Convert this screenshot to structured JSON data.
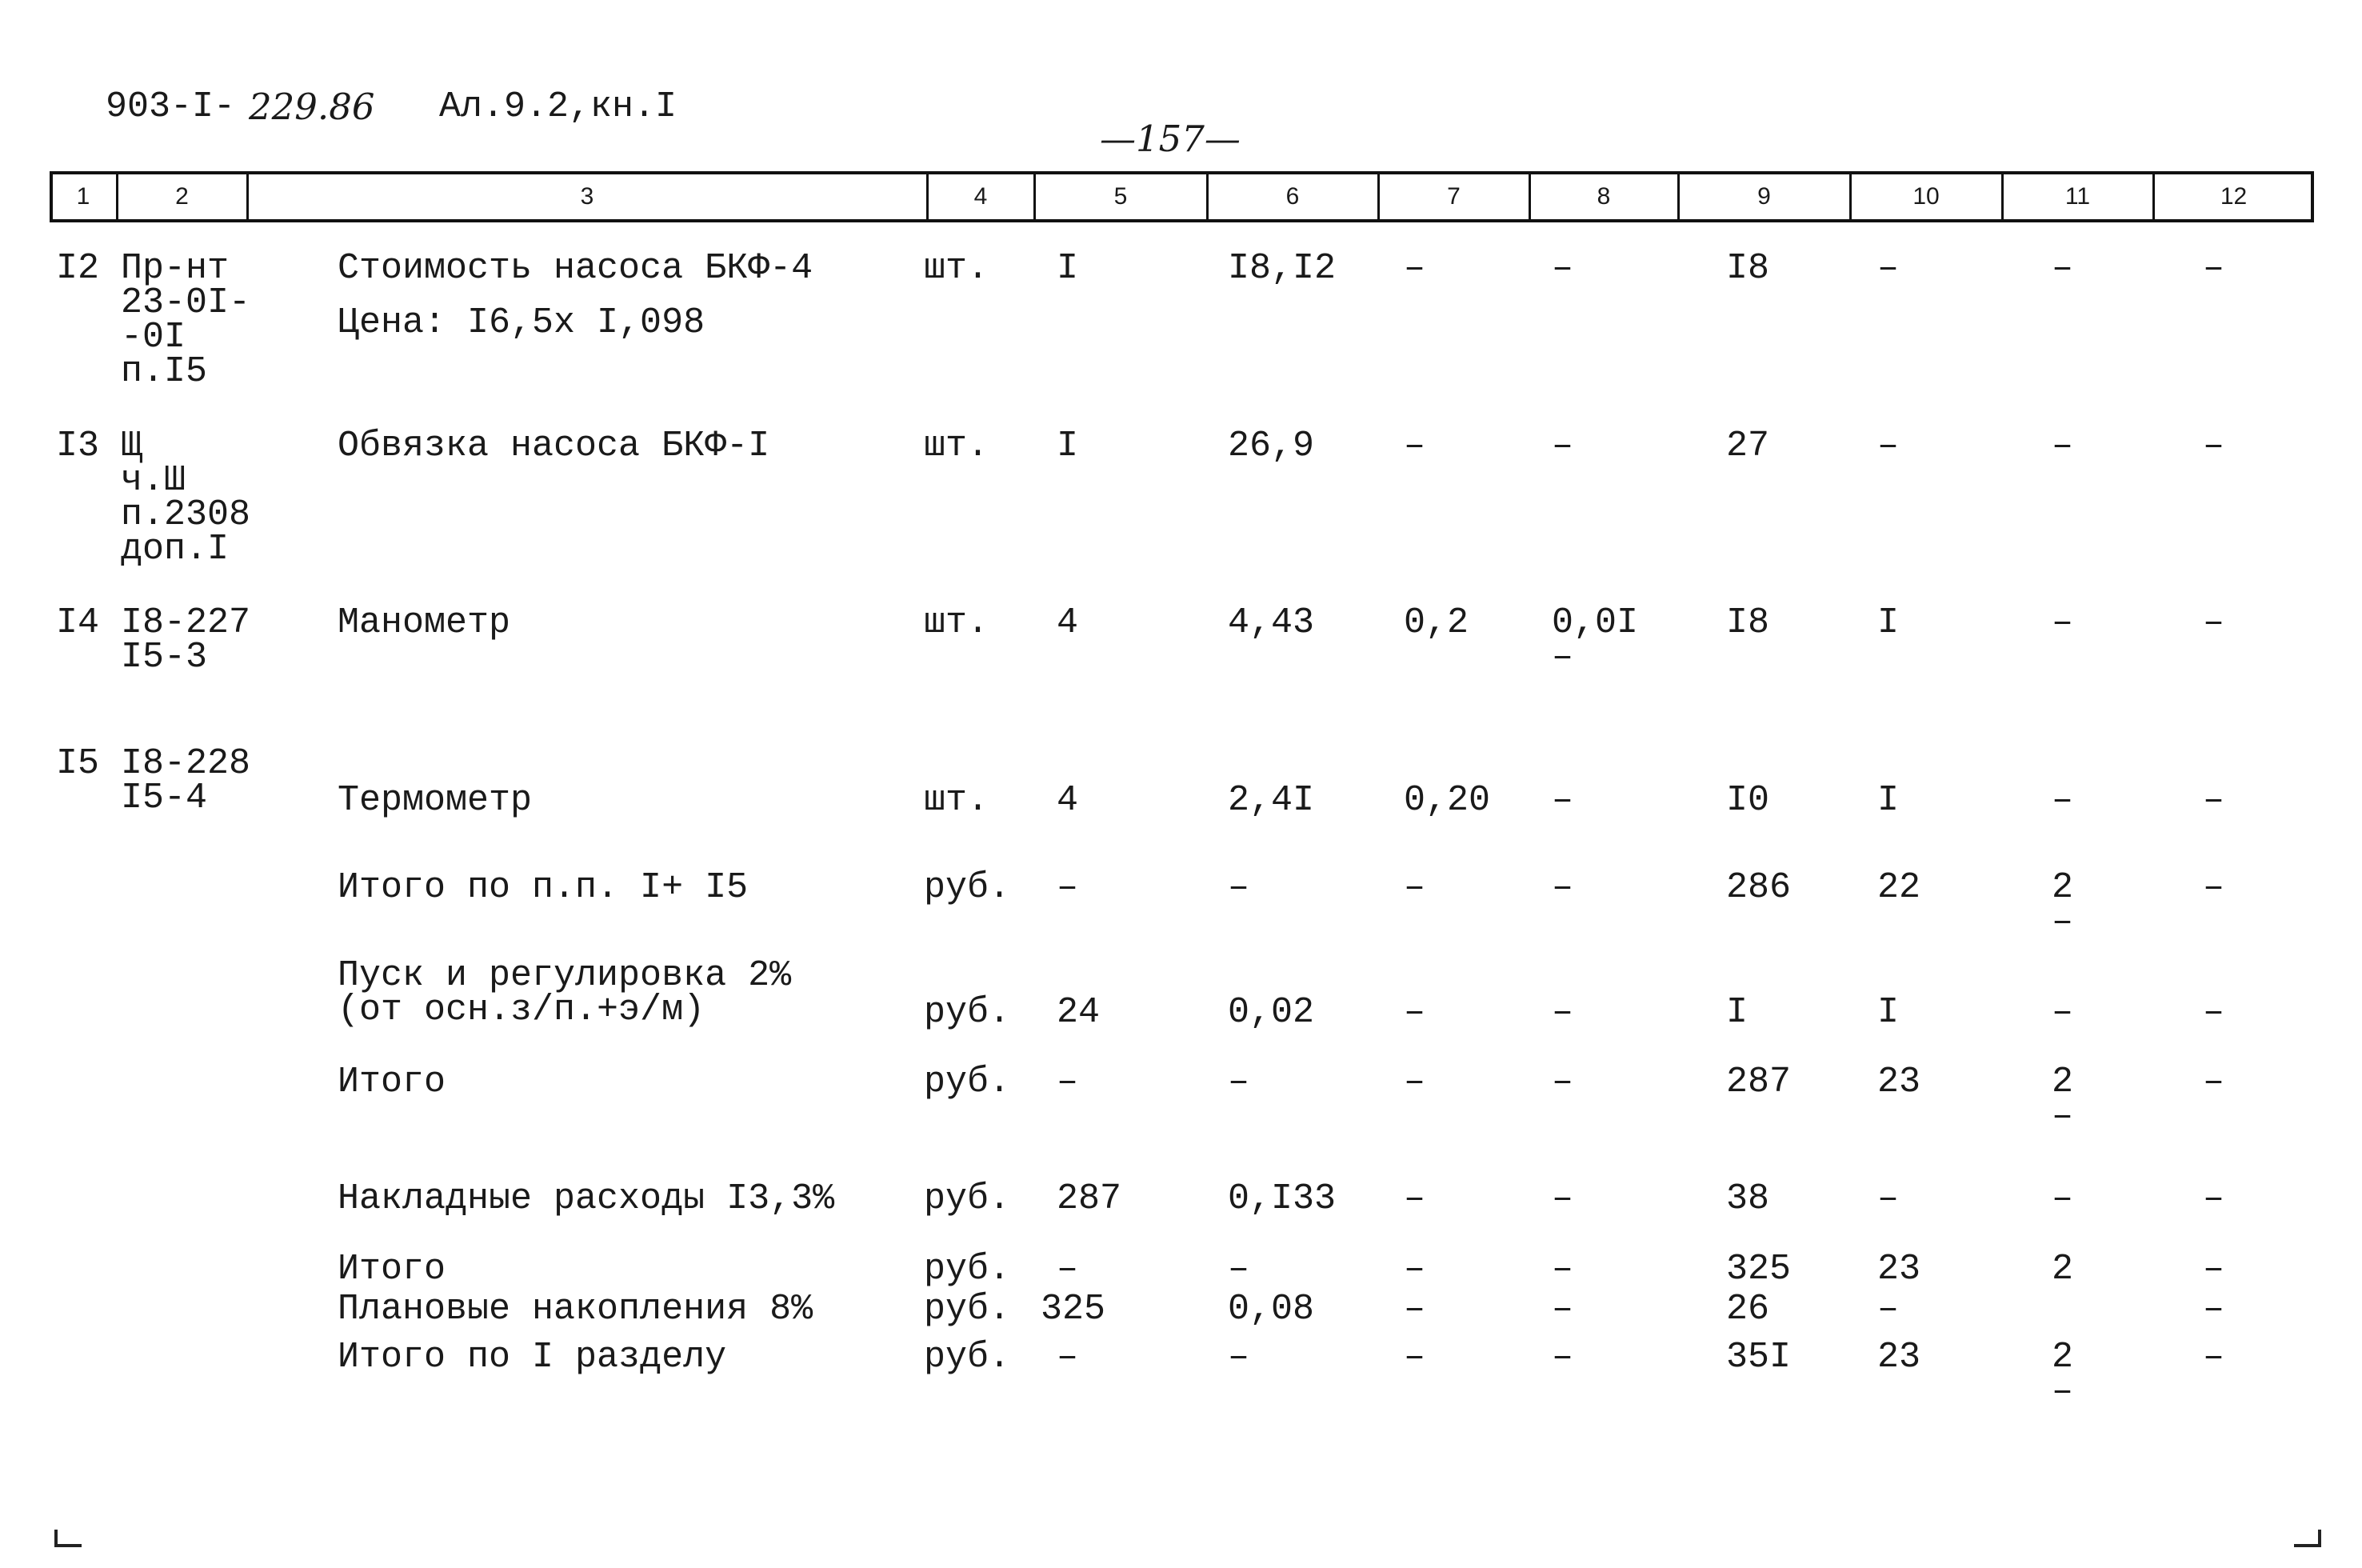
{
  "header": {
    "code": "903-I-",
    "code_handwritten": "229.86",
    "album": "Ал.9.2,кн.I",
    "page": "—157—"
  },
  "table": {
    "columns": [
      "1",
      "2",
      "3",
      "4",
      "5",
      "6",
      "7",
      "8",
      "9",
      "10",
      "11",
      "12"
    ],
    "rows": [
      [
        "I2",
        "Пр-нт\n23-0I-\n-0I\nп.I5",
        "Стоимость насоса БКФ-4\nЦена: I6,5х I,098",
        "шт.",
        "I",
        "I8,I2",
        "–",
        "–",
        "I8",
        "–",
        "–",
        "–"
      ],
      [
        "I3",
        "Щ\nч.Ш\nп.2308\nдоп.I",
        "Обвязка насоса БКФ-I",
        "шт.",
        "I",
        "26,9",
        "–",
        "–",
        "27",
        "–",
        "–",
        "–"
      ],
      [
        "I4",
        "I8-227\nI5-3",
        "Манометр",
        "шт.",
        "4",
        "4,43",
        "0,2",
        "0,0I\n–",
        "I8",
        "I",
        "–",
        "–"
      ],
      [
        "I5",
        "I8-228\nI5-4",
        "Термометр",
        "шт.",
        "4",
        "2,4I",
        "0,20",
        "–",
        "I0",
        "I",
        "–",
        "–"
      ],
      [
        null,
        null,
        "Итого по п.п. I+ I5",
        "руб.",
        "–",
        "–",
        "–",
        "–",
        "286",
        "22",
        "2\n–",
        "–"
      ],
      [
        null,
        null,
        "Пуск и регулировка 2%\n(от осн.з/п.+э/м)",
        "руб.",
        "24",
        "0,02",
        "–",
        "–",
        "I",
        "I",
        "–",
        "–"
      ],
      [
        null,
        null,
        "Итого",
        "руб.",
        "–",
        "–",
        "–",
        "–",
        "287",
        "23",
        "2\n–",
        "–"
      ],
      [
        null,
        null,
        "Накладные расходы I3,3%",
        "руб.",
        "287",
        "0,I33",
        "–",
        "–",
        "38",
        "–",
        "–",
        "–"
      ],
      [
        null,
        null,
        "Итого",
        "руб.",
        "–",
        "–",
        "–",
        "–",
        "325",
        "23",
        "2",
        "–"
      ],
      [
        null,
        null,
        "Плановые накопления 8%",
        "руб.",
        "325",
        "0,08",
        "–",
        "–",
        "26",
        "–",
        null,
        "–"
      ],
      [
        null,
        null,
        "Итого по I разделу",
        "руб.",
        "–",
        "–",
        "–",
        "–",
        "35I",
        "23",
        "2\n–",
        "–"
      ]
    ]
  }
}
